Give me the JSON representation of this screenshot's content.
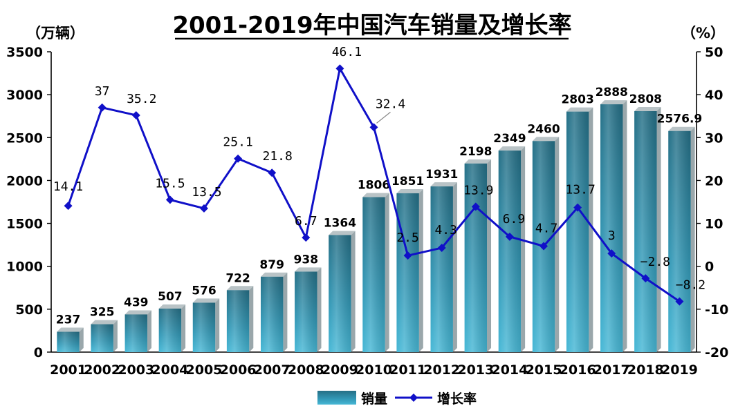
{
  "chart_data": {
    "type": "bar",
    "title": "2001-2019年中国汽车销量及增长率",
    "y_left_unit": "（万辆）",
    "y_right_unit": "（%）",
    "categories": [
      "2001",
      "2002",
      "2003",
      "2004",
      "2005",
      "2006",
      "2007",
      "2008",
      "2009",
      "2010",
      "2011",
      "2012",
      "2013",
      "2014",
      "2015",
      "2016",
      "2017",
      "2018",
      "2019"
    ],
    "series": [
      {
        "name": "销量",
        "type": "bar",
        "axis": "left",
        "values": [
          237,
          325,
          439,
          507,
          576,
          722,
          879,
          938,
          1364,
          1806,
          1851,
          1931,
          2198,
          2349,
          2460,
          2803,
          2888,
          2808,
          2576.9
        ],
        "labels": [
          "237",
          "325",
          "439",
          "507",
          "576",
          "722",
          "879",
          "938",
          "1364",
          "1806",
          "1851",
          "1931",
          "2198",
          "2349",
          "2460",
          "2803",
          "2888",
          "2808",
          "2576.9"
        ],
        "color": "#2f9cb5"
      },
      {
        "name": "增长率",
        "type": "line",
        "axis": "right",
        "values": [
          14.1,
          37,
          35.2,
          15.5,
          13.5,
          25.1,
          21.8,
          6.7,
          46.1,
          32.4,
          2.5,
          4.3,
          13.9,
          6.9,
          4.7,
          13.7,
          3,
          -2.8,
          -8.2
        ],
        "labels": [
          "14.1",
          "37",
          "35.2",
          "15.5",
          "13.5",
          "25.1",
          "21.8",
          "6.7",
          "46.1",
          "32.4",
          "2.5",
          "4.3",
          "13.9",
          "6.9",
          "4.7",
          "13.7",
          "3",
          "−2.8",
          "−8.2"
        ],
        "color": "#1010c8"
      }
    ],
    "y_left": {
      "min": 0,
      "max": 3500,
      "ticks": [
        "0",
        "500",
        "1000",
        "1500",
        "2000",
        "2500",
        "3000",
        "3500"
      ]
    },
    "y_right": {
      "min": -20,
      "max": 50,
      "ticks": [
        "-20",
        "-10",
        "0",
        "10",
        "20",
        "30",
        "40",
        "50"
      ]
    },
    "legend_position": "bottom",
    "grid": false
  }
}
